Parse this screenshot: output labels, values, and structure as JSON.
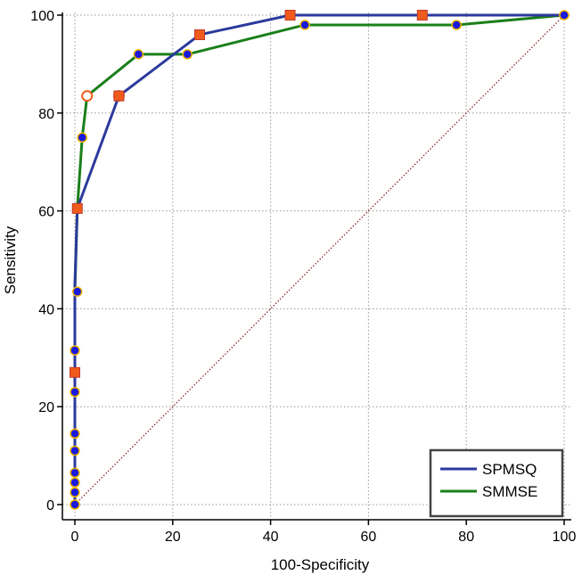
{
  "chart_data": {
    "type": "line",
    "xlabel": "100-Specificity",
    "ylabel": "Sensitivity",
    "xlim": [
      0,
      100
    ],
    "ylim": [
      0,
      100
    ],
    "xticks": [
      "0",
      "20",
      "40",
      "60",
      "80",
      "100"
    ],
    "yticks": [
      "0",
      "20",
      "40",
      "60",
      "80",
      "100"
    ],
    "grid": true,
    "legend_position": "bottom-right",
    "reference_line": {
      "style": "dotted",
      "color": "#8b1a1a",
      "from": [
        0,
        0
      ],
      "to": [
        100,
        100
      ]
    },
    "series": [
      {
        "name": "SPMSQ",
        "color": "#2b3a9c",
        "x": [
          0,
          0,
          0,
          0,
          0,
          0.5,
          9,
          25.5,
          44,
          71,
          100
        ],
        "y": [
          0,
          5,
          11,
          27,
          45,
          60.5,
          83.5,
          96,
          100,
          100,
          100
        ],
        "markers": [
          {
            "x": 0,
            "y": 27,
            "kind": "square"
          },
          {
            "x": 0.5,
            "y": 60.5,
            "kind": "square"
          },
          {
            "x": 9,
            "y": 83.5,
            "kind": "square"
          },
          {
            "x": 25.5,
            "y": 96,
            "kind": "square"
          },
          {
            "x": 44,
            "y": 100,
            "kind": "square"
          },
          {
            "x": 71,
            "y": 100,
            "kind": "square"
          }
        ]
      },
      {
        "name": "SMMSE",
        "color": "#1a7f1a",
        "x": [
          0,
          0,
          0,
          0,
          0,
          0,
          0,
          0,
          0,
          0.5,
          0.5,
          1.5,
          2.5,
          13,
          23,
          47,
          78,
          100
        ],
        "y": [
          0,
          2.5,
          4.5,
          6.5,
          11,
          14.5,
          23,
          31.5,
          43.5,
          60.5,
          60.5,
          75,
          83.5,
          92,
          92,
          98,
          98,
          100
        ],
        "markers": [
          {
            "x": 0,
            "y": 0,
            "kind": "circle"
          },
          {
            "x": 0,
            "y": 2.5,
            "kind": "circle"
          },
          {
            "x": 0,
            "y": 4.5,
            "kind": "circle"
          },
          {
            "x": 0,
            "y": 6.5,
            "kind": "circle"
          },
          {
            "x": 0,
            "y": 11,
            "kind": "circle"
          },
          {
            "x": 0,
            "y": 14.5,
            "kind": "circle"
          },
          {
            "x": 0,
            "y": 23,
            "kind": "circle"
          },
          {
            "x": 0,
            "y": 31.5,
            "kind": "circle"
          },
          {
            "x": 0.5,
            "y": 43.5,
            "kind": "circle"
          },
          {
            "x": 0.5,
            "y": 60.5,
            "kind": "circle"
          },
          {
            "x": 1.5,
            "y": 75,
            "kind": "circle"
          },
          {
            "x": 2.5,
            "y": 83.5,
            "kind": "circle-open"
          },
          {
            "x": 9,
            "y": 83.5,
            "kind": "circle-open"
          },
          {
            "x": 13,
            "y": 92,
            "kind": "circle"
          },
          {
            "x": 23,
            "y": 92,
            "kind": "circle"
          },
          {
            "x": 47,
            "y": 98,
            "kind": "circle"
          },
          {
            "x": 78,
            "y": 98,
            "kind": "circle"
          },
          {
            "x": 100,
            "y": 100,
            "kind": "circle"
          }
        ]
      }
    ],
    "marker_colors": {
      "square_fill": "#f05a1a",
      "square_stroke": "#c0392b",
      "circle_fill": "#1a1adc",
      "circle_stroke": "#f0b400",
      "open_fill": "#ffffff",
      "open_stroke": "#f05a1a"
    }
  },
  "legend": {
    "items": [
      {
        "label": "SPMSQ",
        "color": "#2b3a9c"
      },
      {
        "label": "SMMSE",
        "color": "#1a7f1a"
      }
    ]
  }
}
